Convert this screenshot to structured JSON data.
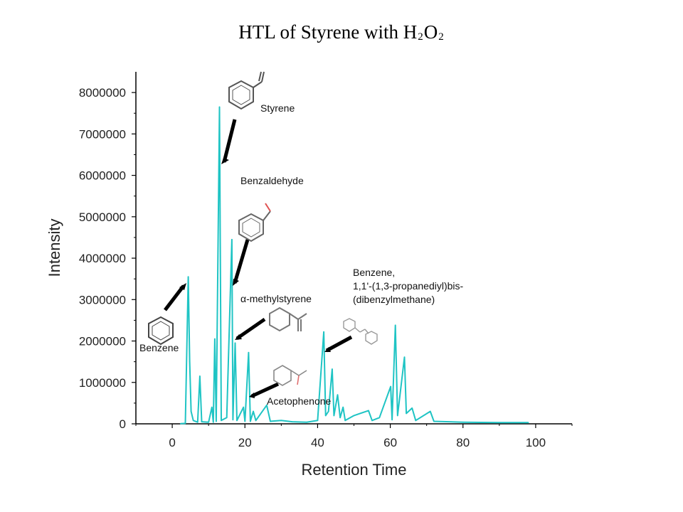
{
  "title": {
    "main": "HTL of Styrene with H",
    "sub1": "2",
    "mid": "O",
    "sub2": "2"
  },
  "chart_data": {
    "type": "line",
    "title": "HTL of Styrene with H2O2",
    "xlabel": "Retention Time",
    "ylabel": "Intensity",
    "xlim": [
      -10,
      110
    ],
    "ylim": [
      0,
      8500000
    ],
    "xticks": [
      0,
      20,
      40,
      60,
      80,
      100
    ],
    "yticks": [
      0,
      1000000,
      2000000,
      3000000,
      4000000,
      5000000,
      6000000,
      7000000,
      8000000
    ],
    "color": "#1fc4c4",
    "grid": false,
    "baseline": [
      [
        2.3,
        5000
      ],
      [
        3.6,
        10000
      ],
      [
        4.4,
        3550000
      ],
      [
        4.8,
        1500000
      ],
      [
        5.2,
        300000
      ],
      [
        5.8,
        80000
      ],
      [
        7,
        40000
      ],
      [
        7.6,
        1150000
      ],
      [
        8.1,
        50000
      ],
      [
        10,
        40000
      ],
      [
        10.9,
        400000
      ],
      [
        11.3,
        40000
      ],
      [
        11.7,
        2050000
      ],
      [
        12.1,
        60000
      ],
      [
        13.0,
        7650000
      ],
      [
        13.5,
        80000
      ],
      [
        15,
        150000
      ],
      [
        16.4,
        4450000
      ],
      [
        16.7,
        100000
      ],
      [
        17.3,
        1950000
      ],
      [
        17.8,
        80000
      ],
      [
        19.6,
        400000
      ],
      [
        20.0,
        60000
      ],
      [
        21.0,
        1720000
      ],
      [
        21.5,
        60000
      ],
      [
        22.3,
        300000
      ],
      [
        23,
        80000
      ],
      [
        26,
        450000
      ],
      [
        27,
        60000
      ],
      [
        30,
        80000
      ],
      [
        33,
        50000
      ],
      [
        37,
        40000
      ],
      [
        40,
        80000
      ],
      [
        41.7,
        2220000
      ],
      [
        42.2,
        200000
      ],
      [
        43,
        300000
      ],
      [
        44.0,
        1320000
      ],
      [
        44.5,
        200000
      ],
      [
        45.5,
        700000
      ],
      [
        46.2,
        150000
      ],
      [
        47,
        400000
      ],
      [
        47.6,
        80000
      ],
      [
        50,
        200000
      ],
      [
        54,
        320000
      ],
      [
        55,
        80000
      ],
      [
        57,
        150000
      ],
      [
        60.1,
        900000
      ],
      [
        60.5,
        100000
      ],
      [
        61.4,
        2380000
      ],
      [
        62,
        200000
      ],
      [
        63.9,
        1610000
      ],
      [
        64.4,
        250000
      ],
      [
        66,
        380000
      ],
      [
        67,
        80000
      ],
      [
        71,
        300000
      ],
      [
        72,
        60000
      ],
      [
        80,
        40000
      ],
      [
        90,
        30000
      ],
      [
        98,
        30000
      ]
    ],
    "annotations": [
      {
        "label": "Styrene",
        "x": 13.0
      },
      {
        "label": "Benzaldehyde",
        "x": 16.4
      },
      {
        "label": "α-methylstyrene",
        "x": 17.3
      },
      {
        "label": "Benzene",
        "x": 4.4
      },
      {
        "label": "Acetophenone",
        "x": 21.0
      },
      {
        "label": "Benzene,",
        "x": 41.7
      },
      {
        "label": "1,1'-(1,3-propanediyl)bis-",
        "x": 41.7
      },
      {
        "label": "(dibenzylmethane)",
        "x": 41.7
      }
    ]
  }
}
